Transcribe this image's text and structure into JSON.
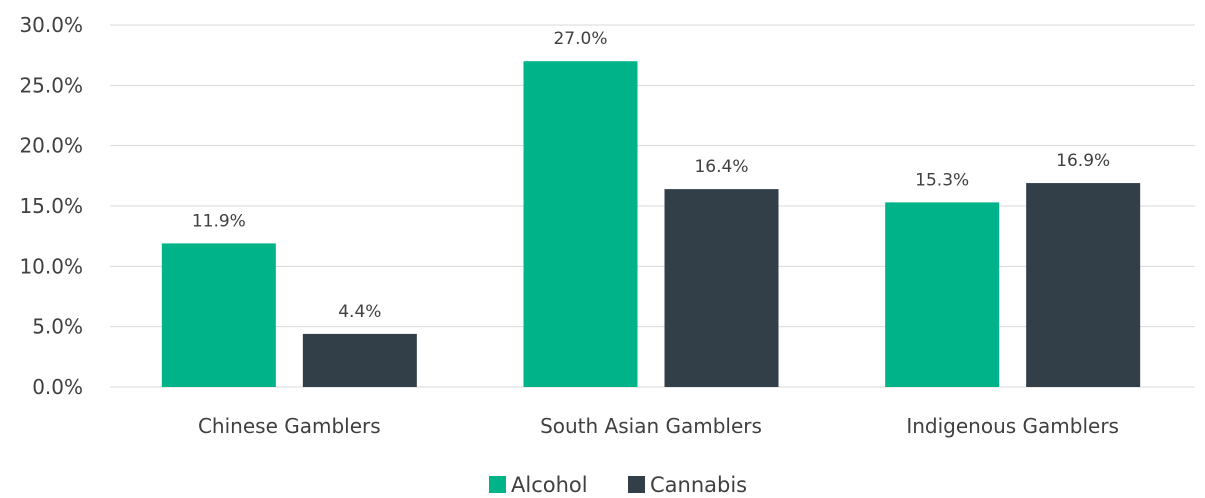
{
  "chart_data": {
    "type": "bar",
    "categories": [
      "Chinese Gamblers",
      "South Asian Gamblers",
      "Indigenous Gamblers"
    ],
    "series": [
      {
        "name": "Alcohol",
        "values": [
          11.9,
          27.0,
          15.3
        ],
        "color": "#00b388"
      },
      {
        "name": "Cannabis",
        "values": [
          4.4,
          16.4,
          16.9
        ],
        "color": "#333f48"
      }
    ],
    "data_labels": [
      [
        "11.9%",
        "27.0%",
        "15.3%"
      ],
      [
        "4.4%",
        "16.4%",
        "16.9%"
      ]
    ],
    "y_ticks": [
      "0.0%",
      "5.0%",
      "10.0%",
      "15.0%",
      "20.0%",
      "25.0%",
      "30.0%"
    ],
    "ylim": [
      0,
      30
    ],
    "title": "",
    "xlabel": "",
    "ylabel": "",
    "grid": true,
    "legend_position": "bottom"
  }
}
